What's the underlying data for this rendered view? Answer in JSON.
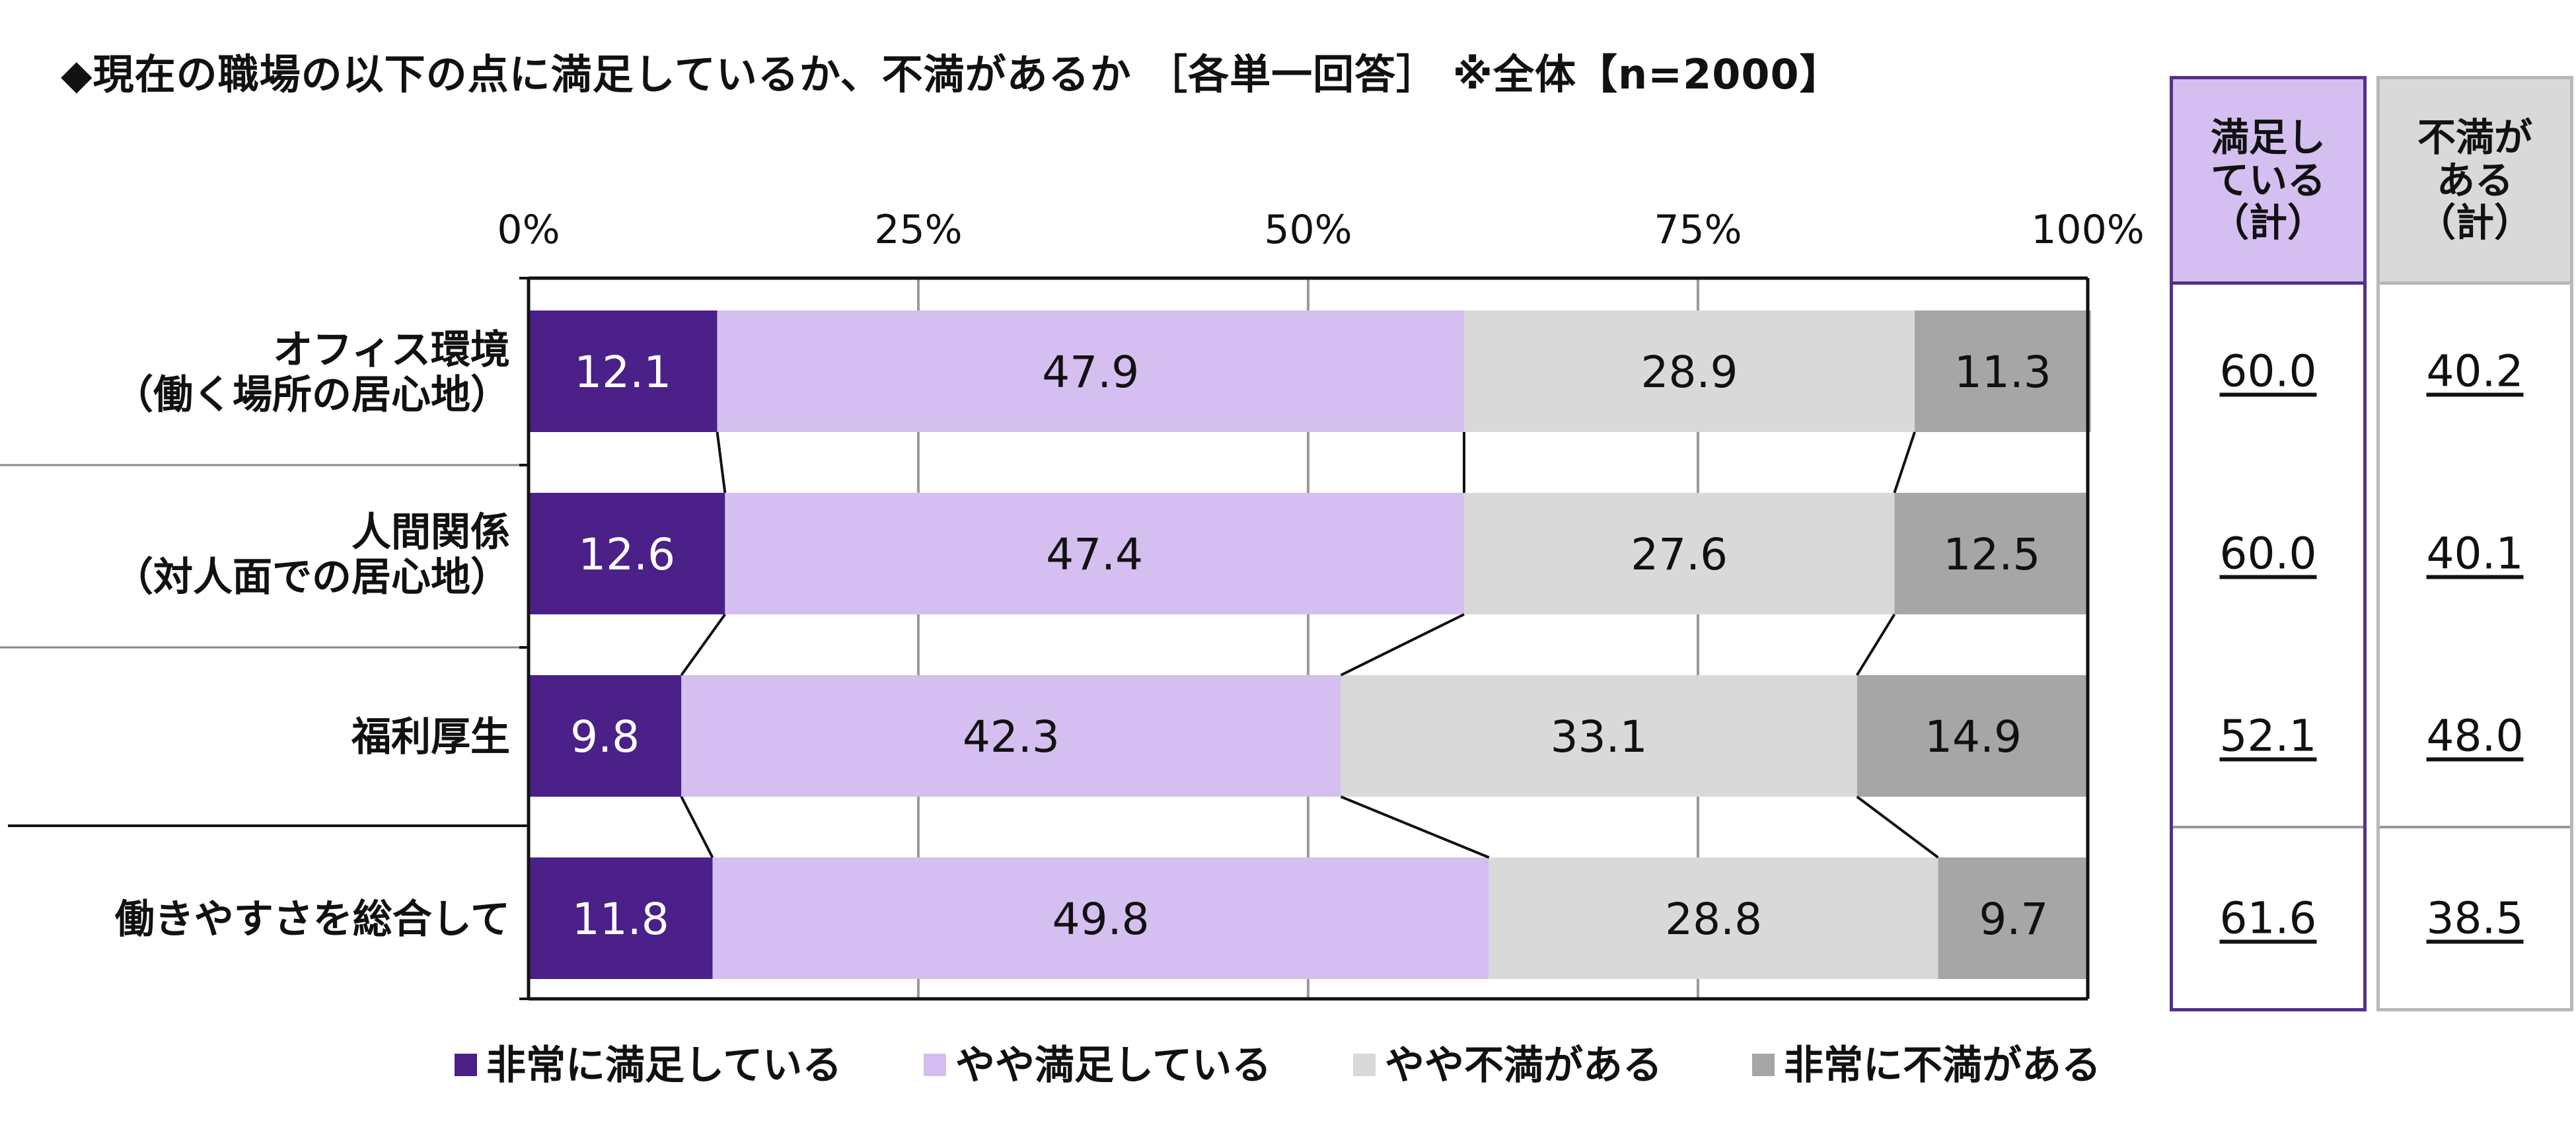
{
  "title": "◆現在の職場の以下の点に満足しているか、不満があるか ［各単一回答］ ※全体【n=2000】",
  "columns": {
    "satisfied_header": "満足し\nている\n（計）",
    "dissatisfied_header": "不満が\nある\n（計）"
  },
  "colors": {
    "very_satisfied": "#4b2088",
    "somewhat_satisfied": "#d4bff0",
    "somewhat_dissatisfied": "#d9d9d9",
    "very_dissatisfied": "#a6a6a6"
  },
  "chart_data": {
    "type": "bar",
    "orientation": "horizontal",
    "stacked": true,
    "percent_axis": true,
    "xlim": [
      0,
      100
    ],
    "x_ticks": [
      "0%",
      "25%",
      "50%",
      "75%",
      "100%"
    ],
    "categories": [
      [
        "オフィス環境",
        "（働く場所の居心地）"
      ],
      [
        "人間関係",
        "（対人面での居心地）"
      ],
      [
        "福利厚生"
      ],
      [
        "働きやすさを総合して"
      ]
    ],
    "series": [
      {
        "name": "非常に満足している",
        "values": [
          12.1,
          12.6,
          9.8,
          11.8
        ]
      },
      {
        "name": "やや満足している",
        "values": [
          47.9,
          47.4,
          42.3,
          49.8
        ]
      },
      {
        "name": "やや不満がある",
        "values": [
          28.9,
          27.6,
          33.1,
          28.8
        ]
      },
      {
        "name": "非常に不満がある",
        "values": [
          11.3,
          12.5,
          14.9,
          9.7
        ]
      }
    ],
    "satisfied_total": [
      "60.0",
      "60.0",
      "52.1",
      "61.6"
    ],
    "dissatisfied_total": [
      "40.2",
      "40.1",
      "48.0",
      "38.5"
    ],
    "legend_position": "bottom",
    "grid": true
  }
}
